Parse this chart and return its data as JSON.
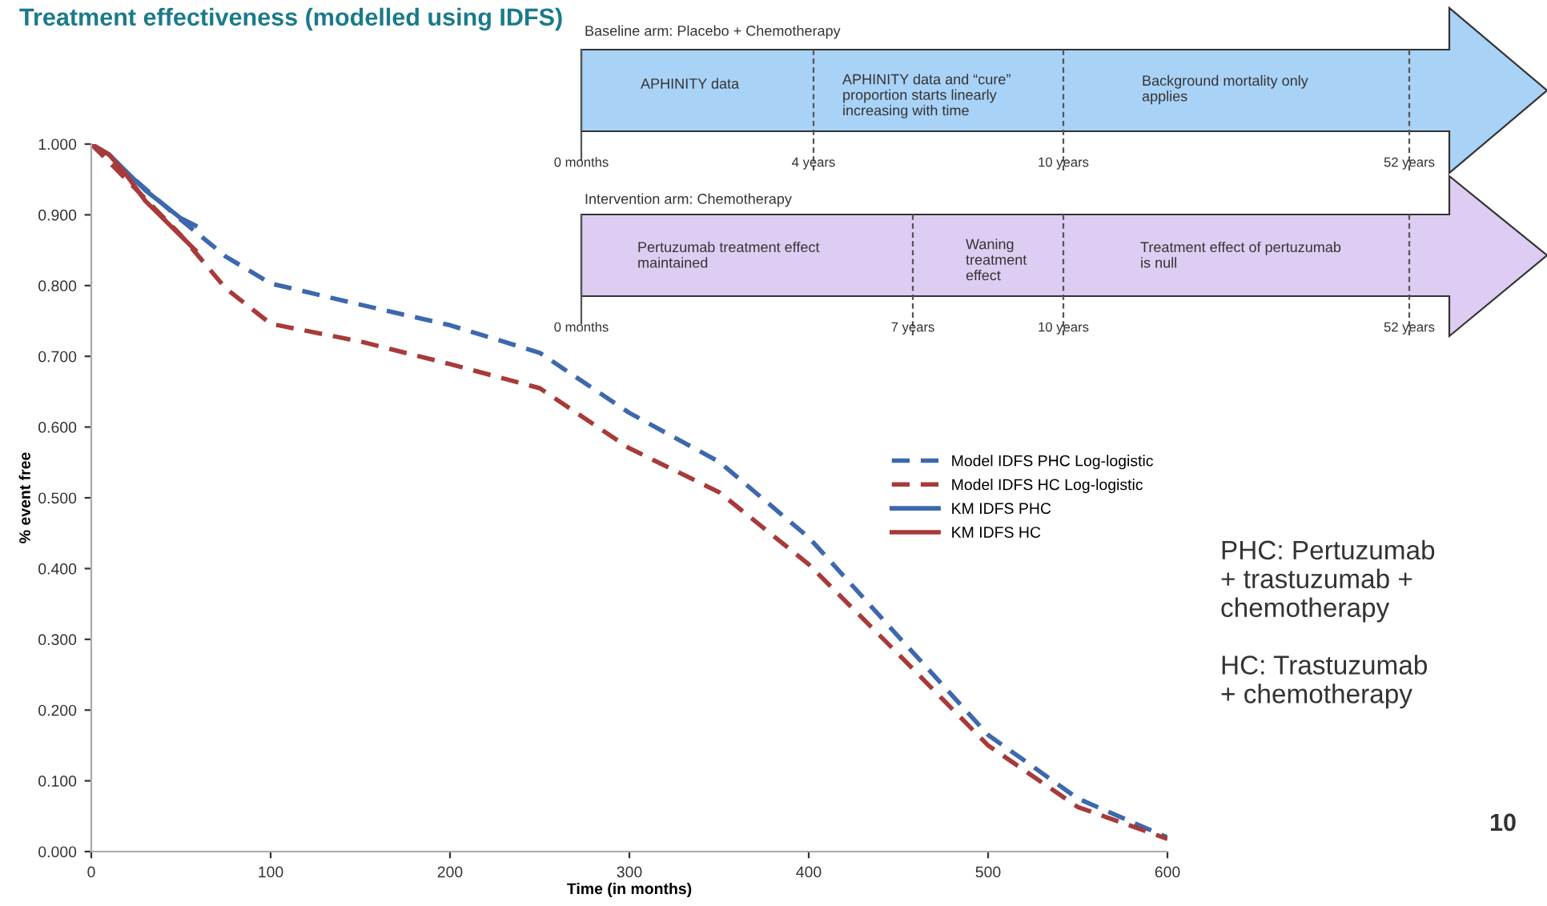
{
  "chart_data": {
    "type": "line",
    "title": "Treatment effectiveness (modelled using IDFS)",
    "xlabel": "Time (in months)",
    "ylabel": "% event free",
    "xlim": [
      0,
      600
    ],
    "xticks": [
      0,
      100,
      200,
      300,
      400,
      500,
      600
    ],
    "ylim": [
      0,
      1
    ],
    "yticks": [
      {
        "value": 0,
        "label": "0.000"
      },
      {
        "value": 0.1,
        "label": "0.100"
      },
      {
        "value": 0.2,
        "label": "0.200"
      },
      {
        "value": 0.3,
        "label": "0.300"
      },
      {
        "value": 0.4,
        "label": "0.400"
      },
      {
        "value": 0.5,
        "label": "0.500"
      },
      {
        "value": 0.6,
        "label": "0.600"
      },
      {
        "value": 0.7,
        "label": "0.700"
      },
      {
        "value": 0.8,
        "label": "0.800"
      },
      {
        "value": 0.9,
        "label": "0.900"
      },
      {
        "value": 1,
        "label": "1.000"
      }
    ],
    "grid": false,
    "legend": "right",
    "series": [
      {
        "name": "Model IDFS PHC Log-logistic",
        "color": "#3d68ad",
        "line_style": "dashed",
        "x": [
          0,
          25,
          50,
          75,
          100,
          150,
          200,
          250,
          300,
          350,
          400,
          450,
          500,
          550,
          600
        ],
        "values": [
          1.0,
          0.948,
          0.893,
          0.841,
          0.803,
          0.773,
          0.744,
          0.705,
          0.62,
          0.551,
          0.444,
          0.304,
          0.165,
          0.075,
          0.02
        ]
      },
      {
        "name": "Model IDFS HC Log-logistic",
        "color": "#a83a3a",
        "line_style": "dashed",
        "x": [
          0,
          25,
          50,
          75,
          100,
          150,
          200,
          250,
          300,
          350,
          400,
          450,
          500,
          550,
          600
        ],
        "values": [
          1.0,
          0.936,
          0.871,
          0.796,
          0.746,
          0.721,
          0.689,
          0.655,
          0.57,
          0.508,
          0.406,
          0.279,
          0.15,
          0.063,
          0.018
        ]
      },
      {
        "name": "KM IDFS PHC",
        "color": "#3d68ad",
        "line_style": "solid",
        "x": [
          0,
          10,
          20,
          30,
          40,
          50,
          58
        ],
        "values": [
          1.0,
          0.985,
          0.96,
          0.935,
          0.915,
          0.895,
          0.885
        ]
      },
      {
        "name": "KM IDFS HC",
        "color": "#a83a3a",
        "line_style": "solid",
        "x": [
          0,
          10,
          20,
          30,
          40,
          50,
          58
        ],
        "values": [
          1.0,
          0.985,
          0.955,
          0.92,
          0.895,
          0.87,
          0.85
        ]
      }
    ],
    "annotations": [
      "Baseline arm: Placebo + Chemotherapy",
      "APHINITY data",
      "APHINITY data and “cure”\nproportion starts linearly\nincreasing with time",
      "Background mortality only\napplies",
      "0 months",
      "4 years",
      "10 years",
      "52 years",
      "Intervention arm: Chemotherapy",
      "Pertuzumab treatment effect\nmaintained",
      "Waning\ntreatment\neffect",
      "Treatment effect of pertuzumab\nis null",
      "0 months",
      "7 years",
      "10 years",
      "52 years",
      "PHC: Pertuzumab\n+ trastuzumab +\nchemotherapy\n\nHC: Trastuzumab\n+ chemotherapy",
      "10"
    ]
  }
}
